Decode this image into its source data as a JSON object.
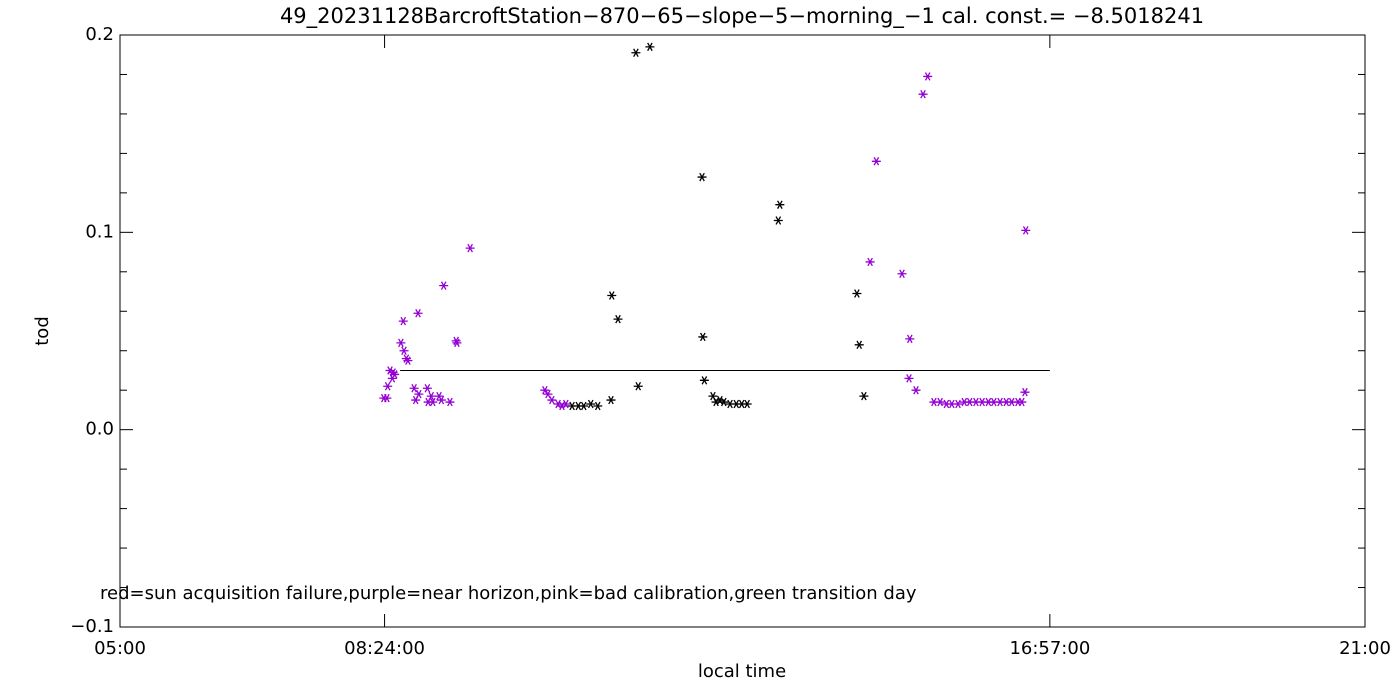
{
  "chart_data": {
    "type": "scatter",
    "title": "49_20231128BarcroftStation−870−65−slope−5−morning_−1 cal. const.= −8.5018241",
    "xlabel": "local time",
    "ylabel": "tod",
    "annotation": "red=sun acquisition failure,purple=near horizon,pink=bad calibration,green transition day",
    "xlim": [
      5,
      21
    ],
    "ylim": [
      -0.1,
      0.2
    ],
    "xticks": [
      {
        "value": 5,
        "label": "05:00"
      },
      {
        "value": 8.4,
        "label": "08:24:00"
      },
      {
        "value": 16.95,
        "label": "16:57:00"
      },
      {
        "value": 21,
        "label": "21:00"
      }
    ],
    "yticks": [
      {
        "value": -0.1,
        "label": "−0.1"
      },
      {
        "value": 0,
        "label": "0.0"
      },
      0.1,
      0.2
    ],
    "y_minor_ticks": [
      -0.08,
      -0.06,
      -0.04,
      -0.02,
      0.02,
      0.04,
      0.06,
      0.08,
      0.12,
      0.14,
      0.16,
      0.18
    ],
    "reference_line": {
      "x": [
        8.6,
        16.95
      ],
      "y": [
        0.03,
        0.03
      ],
      "color": "#000000"
    },
    "series": [
      {
        "color": "#000000",
        "x": [
          10.81,
          10.89,
          10.96,
          11.05,
          11.14,
          11.31,
          11.32,
          11.4,
          11.66,
          11.63,
          11.81,
          12.48,
          12.49,
          12.51,
          12.62,
          12.66,
          12.71,
          12.76,
          12.84,
          12.92,
          12.99,
          13.06,
          13.46,
          13.48,
          14.47,
          14.5,
          14.56
        ],
        "values": [
          0.012,
          0.012,
          0.012,
          0.013,
          0.012,
          0.015,
          0.068,
          0.056,
          0.022,
          0.191,
          0.194,
          0.128,
          0.047,
          0.025,
          0.017,
          0.014,
          0.015,
          0.014,
          0.013,
          0.013,
          0.013,
          0.013,
          0.106,
          0.114,
          0.069,
          0.043,
          0.017
        ]
      },
      {
        "color": "#9400d3",
        "x": [
          8.39,
          8.43,
          8.44,
          8.47,
          8.5,
          8.51,
          8.53,
          8.61,
          8.64,
          8.65,
          8.68,
          8.7,
          8.78,
          8.8,
          8.83,
          8.84,
          8.95,
          8.96,
          9.0,
          9.02,
          9.1,
          9.13,
          9.16,
          9.24,
          9.32,
          9.33,
          9.5,
          10.46,
          10.5,
          10.55,
          10.63,
          10.68,
          10.73,
          14.64,
          14.72,
          15.05,
          15.14,
          15.15,
          15.23,
          15.32,
          15.38,
          15.46,
          15.54,
          15.62,
          15.69,
          15.77,
          15.85,
          15.92,
          16.0,
          16.08,
          16.16,
          16.23,
          16.31,
          16.39,
          16.46,
          16.54,
          16.59,
          16.63,
          16.64
        ],
        "values": [
          0.016,
          0.016,
          0.022,
          0.03,
          0.026,
          0.029,
          0.028,
          0.044,
          0.055,
          0.04,
          0.036,
          0.035,
          0.021,
          0.015,
          0.059,
          0.018,
          0.021,
          0.014,
          0.017,
          0.014,
          0.017,
          0.015,
          0.073,
          0.014,
          0.045,
          0.044,
          0.092,
          0.02,
          0.018,
          0.015,
          0.013,
          0.012,
          0.013,
          0.085,
          0.136,
          0.079,
          0.026,
          0.046,
          0.02,
          0.17,
          0.179,
          0.014,
          0.014,
          0.013,
          0.013,
          0.013,
          0.014,
          0.014,
          0.014,
          0.014,
          0.014,
          0.014,
          0.014,
          0.014,
          0.014,
          0.014,
          0.014,
          0.019,
          0.101
        ]
      }
    ]
  }
}
